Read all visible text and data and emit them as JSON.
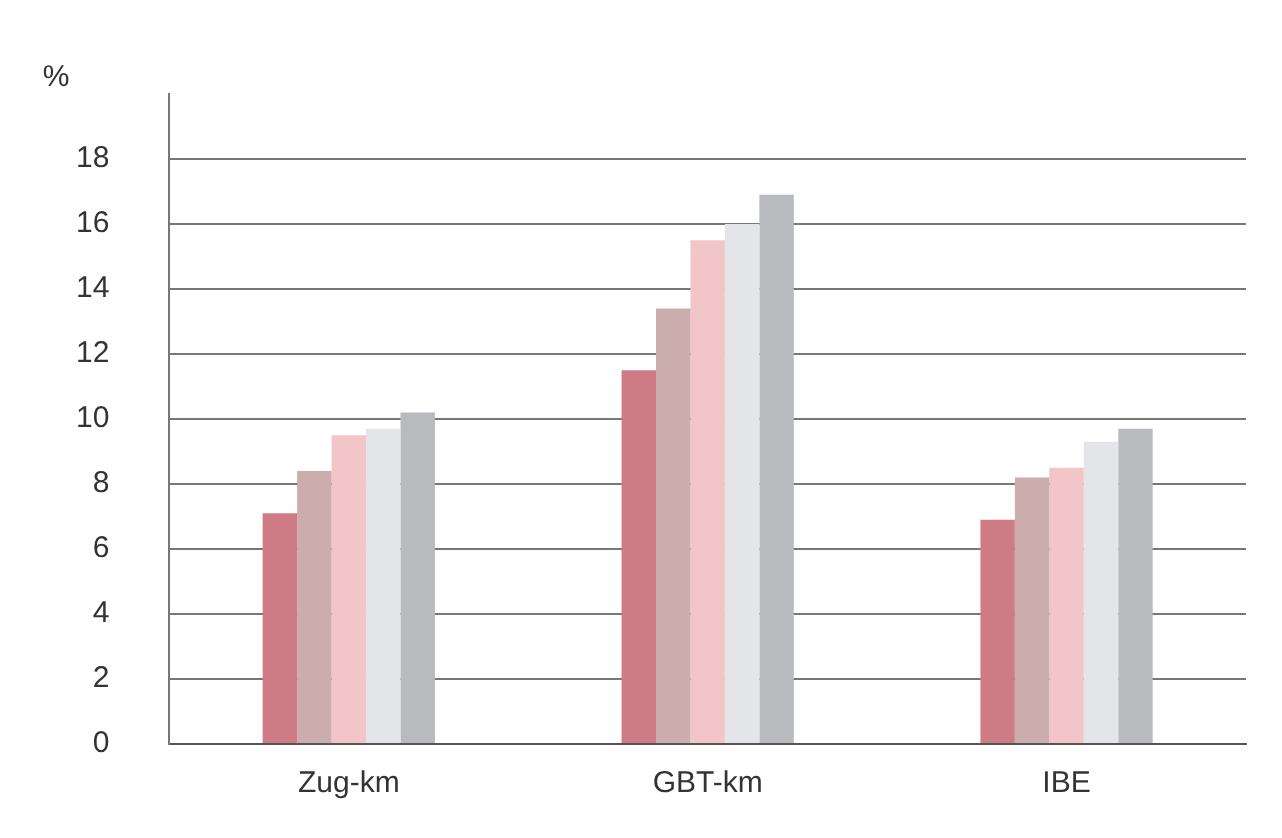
{
  "chart_data": {
    "type": "bar",
    "ylabel": "%",
    "categories": [
      "Zug-km",
      "GBT-km",
      "IBE"
    ],
    "series": [
      {
        "color": "#cf7b86",
        "values": [
          7.1,
          11.5,
          6.9
        ]
      },
      {
        "color": "#cbadae",
        "values": [
          8.4,
          13.4,
          8.2
        ]
      },
      {
        "color": "#f2c5c9",
        "values": [
          9.5,
          15.5,
          8.5
        ]
      },
      {
        "color": "#e4e5e8",
        "values": [
          9.7,
          16.0,
          9.3
        ]
      },
      {
        "color": "#b9babe",
        "values": [
          10.2,
          16.9,
          9.7
        ]
      }
    ],
    "ylim": [
      0,
      20
    ],
    "yticks": [
      0,
      2,
      4,
      6,
      8,
      10,
      12,
      14,
      16,
      18
    ],
    "grid": "y",
    "legend": false
  }
}
